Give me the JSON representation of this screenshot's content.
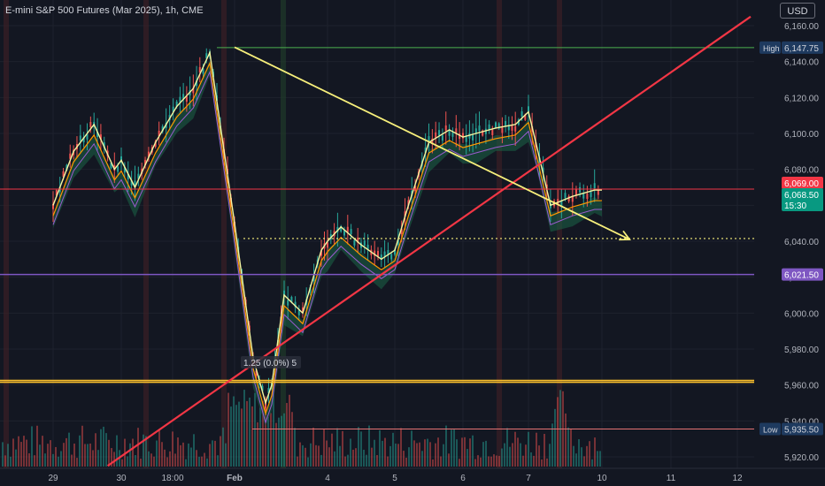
{
  "header": {
    "title": "E-mini S&P 500 Futures (Mar 2025), 1h, CME",
    "currency": "USD"
  },
  "colors": {
    "background": "#131722",
    "grid": "#1e222d",
    "axis_text": "#b2b5be",
    "up": "#26a69a",
    "down": "#ef5350",
    "trendline_red": "#f23645",
    "trendline_yellow": "#f7ef7b",
    "high_line": "#4caf50",
    "support_purple": "#7e57c2",
    "resistance_red": "#f23645",
    "zone_yellow": "#fbc02d",
    "cloud_green": "#1b5e45",
    "cloud_red": "#6d2b2b",
    "session_vline": "#3a1f25"
  },
  "chart_data": {
    "type": "line",
    "title": "E-mini S&P 500 Futures (Mar 2025), 1h, CME",
    "xlabel": "",
    "ylabel": "",
    "ylim": [
      5915,
      6165
    ],
    "x_ticks": [
      "29",
      "30",
      "18:00",
      "Feb",
      "4",
      "5",
      "6",
      "7",
      "10",
      "11",
      "12"
    ],
    "y_ticks": [
      5920,
      5940,
      5960,
      5980,
      6000,
      6020,
      6040,
      6060,
      6080,
      6100,
      6120,
      6140,
      6160
    ],
    "y_tick_labels": [
      "5,920.00",
      "5,940.00",
      "5,960.00",
      "5,980.00",
      "6,000.00",
      "6,020.00",
      "6,040.00",
      "6,060.00",
      "6,080.00",
      "6,100.00",
      "6,120.00",
      "6,140.00",
      "6,160.00"
    ],
    "series": [
      {
        "name": "",
        "x": [
          0,
          0.3,
          0.6,
          0.9,
          1.0,
          1.2,
          1.5,
          1.8,
          2.0,
          2.2,
          2.5,
          2.8,
          3.0,
          3.1,
          3.3,
          3.6,
          3.9,
          4.0,
          4.2,
          4.5,
          4.8,
          5.0,
          5.2,
          5.5,
          5.8,
          6.0,
          6.2,
          6.5,
          6.8,
          7.0,
          7.1,
          7.3,
          7.6,
          7.9,
          8.0
        ],
        "values": [
          6060,
          6090,
          6105,
          6080,
          6085,
          6070,
          6095,
          6115,
          6125,
          6145,
          6050,
          5975,
          5950,
          5960,
          6010,
          6000,
          6035,
          6040,
          6048,
          6038,
          6030,
          6035,
          6060,
          6095,
          6102,
          6098,
          6100,
          6103,
          6105,
          6112,
          6095,
          6060,
          6065,
          6068.5,
          6068.5
        ]
      }
    ],
    "price_labels": [
      {
        "name": "High",
        "value": 6147.75,
        "text": "6,147.75"
      },
      {
        "name": "",
        "value": 6069.0,
        "text": "6,069.00"
      },
      {
        "name": "",
        "value": 6068.5,
        "text": "6,068.50"
      },
      {
        "name": "",
        "value": 6021.5,
        "text": "6,021.50"
      },
      {
        "name": "Low",
        "value": 5935.5,
        "text": "5,935.50"
      }
    ],
    "countdown": "15:30",
    "horizontal_lines": [
      {
        "name": "high",
        "value": 6147.75
      },
      {
        "name": "resistance",
        "value": 6069.0
      },
      {
        "name": "dotted-target",
        "value": 6041.5
      },
      {
        "name": "support",
        "value": 6021.5
      },
      {
        "name": "zone-1",
        "value": 5962.5
      },
      {
        "name": "zone-2",
        "value": 5961.5
      },
      {
        "name": "low",
        "value": 5935.5
      }
    ],
    "trendlines": [
      {
        "name": "rising",
        "from": [
          0.8,
          5915
        ],
        "to": [
          10.2,
          6165
        ]
      },
      {
        "name": "falling",
        "from": [
          2.5,
          6148
        ],
        "to": [
          8.4,
          6041
        ]
      }
    ],
    "annotation": "1.25 (0.0%) 5",
    "grid": true,
    "legend": "none"
  }
}
